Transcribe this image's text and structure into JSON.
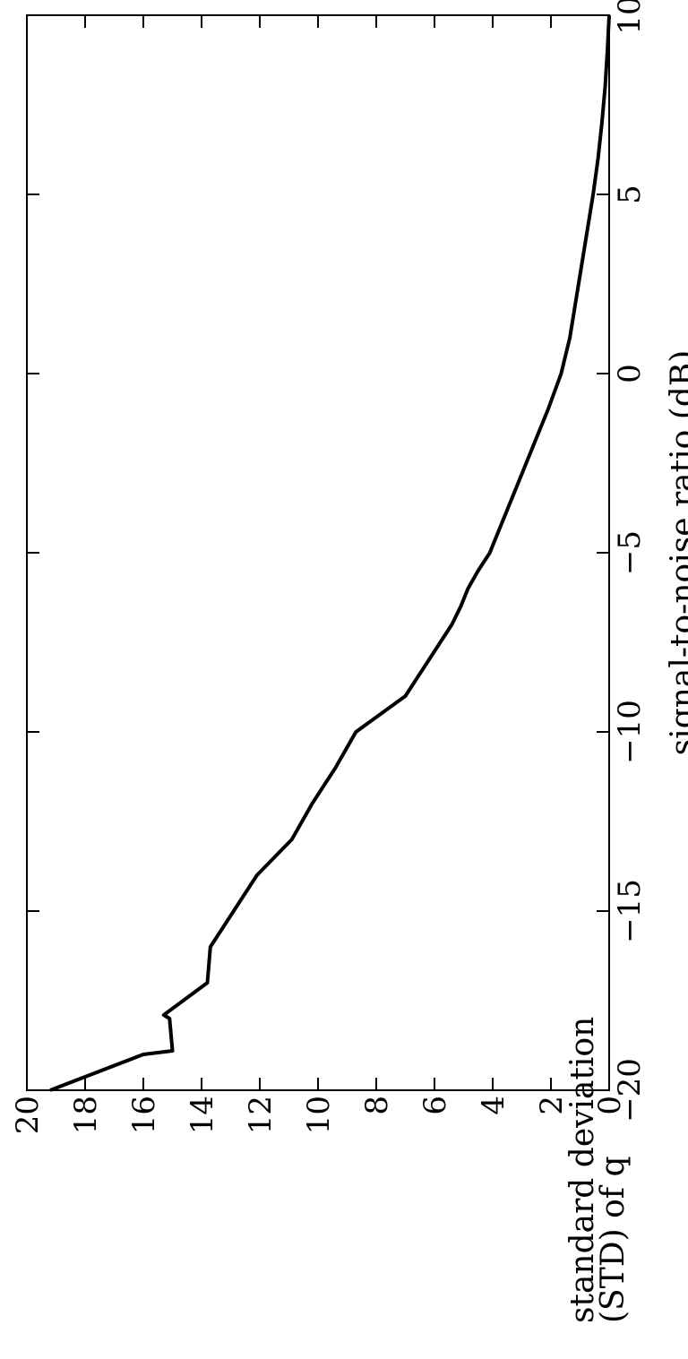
{
  "chart_data": {
    "type": "line",
    "orientation": "rotated 90° counter-clockwise",
    "xlabel": "signal-to-noise ratio (dB)",
    "ylabel_lines": [
      "standard deviation",
      "(STD) of q"
    ],
    "xlim": [
      -20,
      10
    ],
    "ylim": [
      0,
      20
    ],
    "xticks": [
      -20,
      -15,
      -10,
      -5,
      0,
      5,
      10
    ],
    "yticks": [
      0,
      2,
      4,
      6,
      8,
      10,
      12,
      14,
      16,
      18,
      20
    ],
    "grid": false,
    "legend": "none",
    "line_color": "#000000",
    "series": [
      {
        "x": [
          -20,
          -19,
          -18.9,
          -18,
          -17.9,
          -17,
          -16,
          -15,
          -14,
          -13,
          -12,
          -11,
          -10,
          -9,
          -8,
          -7,
          -6.5,
          -6,
          -5.5,
          -5,
          -4.8,
          -4,
          -3,
          -2,
          -1,
          0,
          1,
          2,
          3,
          4,
          5,
          6,
          7,
          8,
          9,
          10
        ],
        "y": [
          19.2,
          16.0,
          15.0,
          15.1,
          15.3,
          13.8,
          13.7,
          12.9,
          12.1,
          10.9,
          10.2,
          9.4,
          8.7,
          7.0,
          6.2,
          5.4,
          5.1,
          4.85,
          4.5,
          4.1,
          4.0,
          3.6,
          3.1,
          2.6,
          2.1,
          1.65,
          1.35,
          1.15,
          0.95,
          0.75,
          0.55,
          0.38,
          0.25,
          0.14,
          0.06,
          0.0
        ]
      }
    ]
  }
}
